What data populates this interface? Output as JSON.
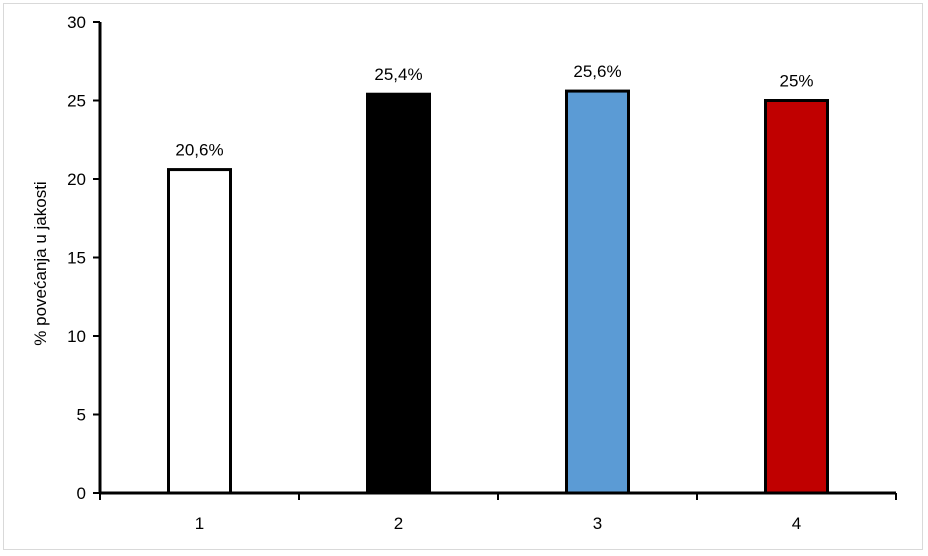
{
  "chart_data": {
    "type": "bar",
    "categories": [
      "1",
      "2",
      "3",
      "4"
    ],
    "values": [
      20.6,
      25.4,
      25.6,
      25
    ],
    "data_labels": [
      "20,6%",
      "25,4%",
      "25,6%",
      "25%"
    ],
    "colors": [
      "#ffffff",
      "#000000",
      "#5b9bd5",
      "#c00000"
    ],
    "ylabel": "% povećanja u jakosti",
    "xlabel": "",
    "ylim": [
      0,
      30
    ],
    "yticks": [
      "0",
      "5",
      "10",
      "15",
      "20",
      "25",
      "30"
    ],
    "grid": false,
    "legend": "none"
  }
}
